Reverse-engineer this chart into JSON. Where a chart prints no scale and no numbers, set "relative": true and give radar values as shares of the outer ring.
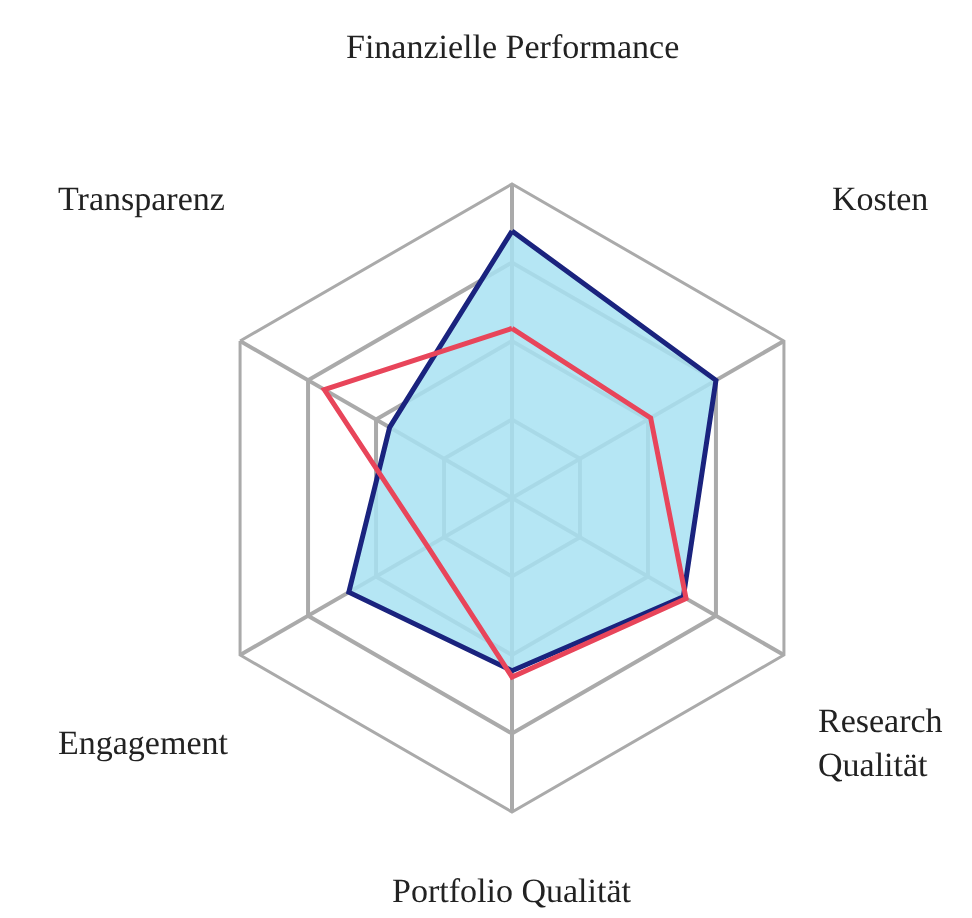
{
  "chart_data": {
    "type": "radar",
    "relative": true,
    "categories": [
      "Finanzielle Performance",
      "Kosten",
      "Research Qualität",
      "Portfolio Qualität",
      "Engagement",
      "Transparenz"
    ],
    "grid": true,
    "legend": false,
    "marker": "none",
    "line_style": "solid",
    "series": [
      {
        "color": "#1a237e",
        "values": [
          0.85,
          0.75,
          0.63,
          0.55,
          0.6,
          0.45
        ]
      },
      {
        "color": "#e8455a",
        "values": [
          0.54,
          0.51,
          0.64,
          0.57,
          0.31,
          0.69
        ]
      }
    ]
  }
}
